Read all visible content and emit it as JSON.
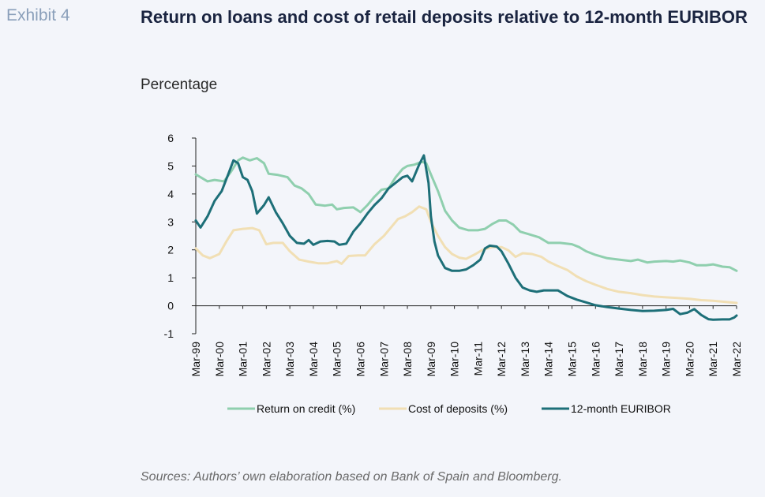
{
  "header": {
    "exhibit": "Exhibit 4",
    "title": "Return on loans and cost of retail deposits relative to 12-month EURIBOR",
    "unit": "Percentage"
  },
  "source": "Sources: Authors’ own elaboration based on Bank of Spain and Bloomberg.",
  "chart_data": {
    "type": "line",
    "title": "Return on loans and cost of retail deposits relative to 12-month EURIBOR",
    "ylabel": "Percentage",
    "ylim": [
      -1,
      6
    ],
    "yticks": [
      -1,
      0,
      1,
      2,
      3,
      4,
      5,
      6
    ],
    "xticks": [
      "Mar-99",
      "Mar-00",
      "Mar-01",
      "Mar-02",
      "Mar-03",
      "Mar-04",
      "Mar-05",
      "Mar-06",
      "Mar-07",
      "Mar-08",
      "Mar-09",
      "Mar-10",
      "Mar-11",
      "Mar-12",
      "Mar-13",
      "Mar-14",
      "Mar-15",
      "Mar-16",
      "Mar-17",
      "Mar-18",
      "Mar-19",
      "Mar-20",
      "Mar-21",
      "Mar-22"
    ],
    "xrange": [
      1999.0,
      2022.0
    ],
    "legend": "bottom",
    "grid": false,
    "series": [
      {
        "name": "Return on credit (%)",
        "color": "#8fcfae",
        "points": [
          [
            1999.0,
            4.7
          ],
          [
            1999.5,
            4.45
          ],
          [
            1999.8,
            4.5
          ],
          [
            2000.2,
            4.45
          ],
          [
            2000.5,
            4.8
          ],
          [
            2000.8,
            5.2
          ],
          [
            2001.0,
            5.3
          ],
          [
            2001.3,
            5.2
          ],
          [
            2001.6,
            5.28
          ],
          [
            2001.9,
            5.1
          ],
          [
            2002.1,
            4.72
          ],
          [
            2002.5,
            4.68
          ],
          [
            2002.9,
            4.6
          ],
          [
            2003.2,
            4.3
          ],
          [
            2003.5,
            4.2
          ],
          [
            2003.8,
            4.0
          ],
          [
            2004.1,
            3.62
          ],
          [
            2004.5,
            3.58
          ],
          [
            2004.8,
            3.62
          ],
          [
            2005.0,
            3.45
          ],
          [
            2005.3,
            3.5
          ],
          [
            2005.7,
            3.52
          ],
          [
            2006.0,
            3.35
          ],
          [
            2006.3,
            3.6
          ],
          [
            2006.6,
            3.9
          ],
          [
            2006.9,
            4.15
          ],
          [
            2007.2,
            4.2
          ],
          [
            2007.5,
            4.6
          ],
          [
            2007.8,
            4.9
          ],
          [
            2008.0,
            5.0
          ],
          [
            2008.3,
            5.05
          ],
          [
            2008.6,
            5.15
          ],
          [
            2008.8,
            5.1
          ],
          [
            2009.0,
            4.7
          ],
          [
            2009.3,
            4.1
          ],
          [
            2009.6,
            3.4
          ],
          [
            2009.9,
            3.05
          ],
          [
            2010.2,
            2.8
          ],
          [
            2010.6,
            2.7
          ],
          [
            2011.0,
            2.7
          ],
          [
            2011.3,
            2.75
          ],
          [
            2011.6,
            2.92
          ],
          [
            2011.9,
            3.05
          ],
          [
            2012.2,
            3.05
          ],
          [
            2012.5,
            2.9
          ],
          [
            2012.8,
            2.65
          ],
          [
            2013.2,
            2.55
          ],
          [
            2013.6,
            2.45
          ],
          [
            2014.0,
            2.25
          ],
          [
            2014.5,
            2.25
          ],
          [
            2015.0,
            2.2
          ],
          [
            2015.3,
            2.1
          ],
          [
            2015.6,
            1.95
          ],
          [
            2016.0,
            1.82
          ],
          [
            2016.5,
            1.7
          ],
          [
            2017.0,
            1.65
          ],
          [
            2017.5,
            1.6
          ],
          [
            2017.8,
            1.65
          ],
          [
            2018.2,
            1.55
          ],
          [
            2018.5,
            1.58
          ],
          [
            2019.0,
            1.6
          ],
          [
            2019.3,
            1.58
          ],
          [
            2019.6,
            1.62
          ],
          [
            2020.0,
            1.55
          ],
          [
            2020.3,
            1.45
          ],
          [
            2020.7,
            1.45
          ],
          [
            2021.0,
            1.48
          ],
          [
            2021.4,
            1.4
          ],
          [
            2021.7,
            1.38
          ],
          [
            2022.0,
            1.25
          ]
        ]
      },
      {
        "name": "Cost of deposits (%)",
        "color": "#f1dfb4",
        "points": [
          [
            1999.0,
            2.05
          ],
          [
            1999.3,
            1.8
          ],
          [
            1999.6,
            1.7
          ],
          [
            2000.0,
            1.85
          ],
          [
            2000.3,
            2.3
          ],
          [
            2000.6,
            2.7
          ],
          [
            2001.0,
            2.75
          ],
          [
            2001.4,
            2.78
          ],
          [
            2001.7,
            2.7
          ],
          [
            2002.0,
            2.2
          ],
          [
            2002.3,
            2.25
          ],
          [
            2002.7,
            2.25
          ],
          [
            2003.0,
            1.95
          ],
          [
            2003.4,
            1.65
          ],
          [
            2003.8,
            1.58
          ],
          [
            2004.2,
            1.52
          ],
          [
            2004.6,
            1.52
          ],
          [
            2005.0,
            1.6
          ],
          [
            2005.2,
            1.5
          ],
          [
            2005.5,
            1.78
          ],
          [
            2005.9,
            1.8
          ],
          [
            2006.2,
            1.8
          ],
          [
            2006.6,
            2.2
          ],
          [
            2007.0,
            2.5
          ],
          [
            2007.3,
            2.8
          ],
          [
            2007.6,
            3.1
          ],
          [
            2007.9,
            3.2
          ],
          [
            2008.2,
            3.35
          ],
          [
            2008.5,
            3.55
          ],
          [
            2008.8,
            3.45
          ],
          [
            2009.0,
            3.0
          ],
          [
            2009.3,
            2.5
          ],
          [
            2009.6,
            2.1
          ],
          [
            2009.9,
            1.85
          ],
          [
            2010.2,
            1.72
          ],
          [
            2010.5,
            1.68
          ],
          [
            2010.9,
            1.85
          ],
          [
            2011.2,
            2.0
          ],
          [
            2011.6,
            2.1
          ],
          [
            2012.0,
            2.1
          ],
          [
            2012.3,
            1.98
          ],
          [
            2012.6,
            1.75
          ],
          [
            2012.9,
            1.88
          ],
          [
            2013.3,
            1.85
          ],
          [
            2013.7,
            1.75
          ],
          [
            2014.0,
            1.58
          ],
          [
            2014.4,
            1.42
          ],
          [
            2014.8,
            1.28
          ],
          [
            2015.2,
            1.05
          ],
          [
            2015.6,
            0.88
          ],
          [
            2016.0,
            0.75
          ],
          [
            2016.5,
            0.6
          ],
          [
            2017.0,
            0.5
          ],
          [
            2017.5,
            0.45
          ],
          [
            2018.0,
            0.38
          ],
          [
            2018.5,
            0.33
          ],
          [
            2019.0,
            0.3
          ],
          [
            2019.5,
            0.28
          ],
          [
            2020.0,
            0.25
          ],
          [
            2020.5,
            0.2
          ],
          [
            2021.0,
            0.18
          ],
          [
            2021.5,
            0.14
          ],
          [
            2022.0,
            0.1
          ]
        ]
      },
      {
        "name": "12-month EURIBOR",
        "color": "#1d6f78",
        "points": [
          [
            1999.0,
            3.05
          ],
          [
            1999.2,
            2.8
          ],
          [
            1999.5,
            3.2
          ],
          [
            1999.8,
            3.75
          ],
          [
            2000.1,
            4.1
          ],
          [
            2000.4,
            4.75
          ],
          [
            2000.6,
            5.2
          ],
          [
            2000.8,
            5.1
          ],
          [
            2001.0,
            4.6
          ],
          [
            2001.2,
            4.5
          ],
          [
            2001.4,
            4.1
          ],
          [
            2001.6,
            3.3
          ],
          [
            2001.9,
            3.6
          ],
          [
            2002.1,
            3.88
          ],
          [
            2002.4,
            3.35
          ],
          [
            2002.7,
            2.95
          ],
          [
            2003.0,
            2.5
          ],
          [
            2003.3,
            2.25
          ],
          [
            2003.6,
            2.22
          ],
          [
            2003.8,
            2.35
          ],
          [
            2004.0,
            2.18
          ],
          [
            2004.3,
            2.3
          ],
          [
            2004.6,
            2.32
          ],
          [
            2004.9,
            2.3
          ],
          [
            2005.1,
            2.18
          ],
          [
            2005.4,
            2.22
          ],
          [
            2005.7,
            2.65
          ],
          [
            2006.0,
            2.95
          ],
          [
            2006.3,
            3.3
          ],
          [
            2006.6,
            3.6
          ],
          [
            2006.9,
            3.85
          ],
          [
            2007.2,
            4.2
          ],
          [
            2007.5,
            4.4
          ],
          [
            2007.8,
            4.6
          ],
          [
            2008.0,
            4.65
          ],
          [
            2008.2,
            4.45
          ],
          [
            2008.5,
            5.05
          ],
          [
            2008.7,
            5.38
          ],
          [
            2008.9,
            4.4
          ],
          [
            2009.0,
            3.2
          ],
          [
            2009.15,
            2.3
          ],
          [
            2009.3,
            1.8
          ],
          [
            2009.6,
            1.35
          ],
          [
            2009.9,
            1.25
          ],
          [
            2010.2,
            1.25
          ],
          [
            2010.5,
            1.3
          ],
          [
            2010.8,
            1.45
          ],
          [
            2011.1,
            1.65
          ],
          [
            2011.3,
            2.05
          ],
          [
            2011.5,
            2.15
          ],
          [
            2011.8,
            2.12
          ],
          [
            2012.0,
            1.95
          ],
          [
            2012.3,
            1.5
          ],
          [
            2012.6,
            1.0
          ],
          [
            2012.9,
            0.65
          ],
          [
            2013.2,
            0.55
          ],
          [
            2013.5,
            0.5
          ],
          [
            2013.8,
            0.55
          ],
          [
            2014.1,
            0.55
          ],
          [
            2014.4,
            0.55
          ],
          [
            2014.8,
            0.35
          ],
          [
            2015.2,
            0.22
          ],
          [
            2015.6,
            0.12
          ],
          [
            2016.0,
            0.02
          ],
          [
            2016.5,
            -0.05
          ],
          [
            2017.0,
            -0.1
          ],
          [
            2017.5,
            -0.15
          ],
          [
            2018.0,
            -0.19
          ],
          [
            2018.5,
            -0.18
          ],
          [
            2019.0,
            -0.15
          ],
          [
            2019.3,
            -0.11
          ],
          [
            2019.6,
            -0.3
          ],
          [
            2019.9,
            -0.25
          ],
          [
            2020.2,
            -0.12
          ],
          [
            2020.5,
            -0.33
          ],
          [
            2020.8,
            -0.48
          ],
          [
            2021.0,
            -0.5
          ],
          [
            2021.4,
            -0.49
          ],
          [
            2021.7,
            -0.49
          ],
          [
            2021.9,
            -0.42
          ],
          [
            2022.0,
            -0.35
          ]
        ]
      }
    ]
  }
}
